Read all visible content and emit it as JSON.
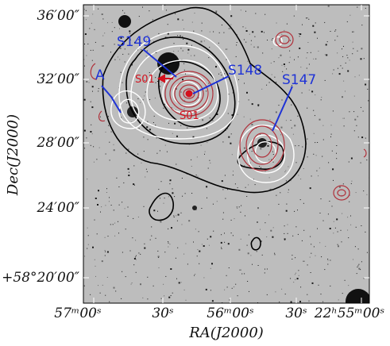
{
  "figure": {
    "y_tick_labels": [
      "36′00″",
      "32′00″",
      "28′00″",
      "24′00″",
      "+58°20′00″"
    ],
    "x_tick_labels": [
      "57ᵐ00ˢ",
      "30ˢ",
      "56ᵐ00ˢ",
      "30ˢ",
      "22ʰ55ᵐ00ˢ"
    ],
    "x_axis_title": "RA(J2000)",
    "y_axis_title": "Dec(J2000)",
    "source_labels": {
      "s149": "S149",
      "s148": "S148",
      "s147": "S147",
      "a": "A",
      "s01_left": "S01",
      "s01_bottom": "S01"
    },
    "colors": {
      "blue_labels": "#1f33d6",
      "red_labels": "#d4111d",
      "white_contours": "#ffffff",
      "black_contours": "#000000",
      "red_contours": "#b0303a",
      "background": "#bdbdbd"
    }
  }
}
